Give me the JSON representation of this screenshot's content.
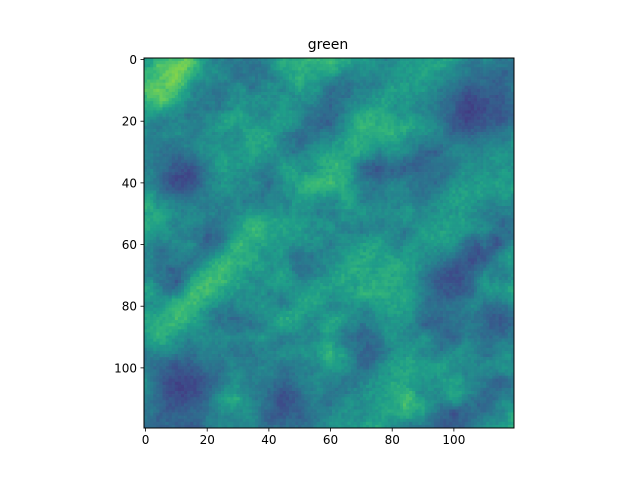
{
  "chart_data": {
    "type": "heatmap",
    "title": "green",
    "colormap": "viridis",
    "colormap_stops": [
      "#440154",
      "#482878",
      "#3e4989",
      "#31688e",
      "#26828e",
      "#1f9e89",
      "#35b779",
      "#6ece58",
      "#b5de2b",
      "#fde725"
    ],
    "grid": false,
    "legend": "none",
    "image_size": [
      120,
      120
    ],
    "xlim": [
      -0.5,
      119.5
    ],
    "ylim": [
      119.5,
      -0.5
    ],
    "x_ticks": [
      0,
      20,
      40,
      60,
      80,
      100
    ],
    "y_ticks": [
      0,
      20,
      40,
      60,
      80,
      100
    ],
    "x_tick_labels": [
      "0",
      "20",
      "40",
      "60",
      "80",
      "100"
    ],
    "y_tick_labels": [
      "0",
      "20",
      "40",
      "60",
      "80",
      "100"
    ],
    "texture": "diagonal forest canopy, bright ridges running from lower-left to upper-right",
    "bright_bands": [
      {
        "row_start": 1,
        "col_start": 13,
        "row_end": 11,
        "col_end": 7,
        "value": 0.95
      },
      {
        "row_start": 55,
        "col_start": 35,
        "row_end": 90,
        "col_end": 5,
        "value": 0.75
      },
      {
        "row_start": 60,
        "col_start": 75,
        "row_end": 85,
        "col_end": 45,
        "value": 0.7
      },
      {
        "row_start": 5,
        "col_start": 85,
        "row_end": 35,
        "col_end": 60,
        "value": 0.65
      },
      {
        "row_start": 45,
        "col_start": 105,
        "row_end": 80,
        "col_end": 80,
        "value": 0.6
      },
      {
        "row_start": 95,
        "col_start": 85,
        "row_end": 118,
        "col_end": 60,
        "value": 0.55
      },
      {
        "row_start": 20,
        "col_start": 45,
        "row_end": 40,
        "col_end": 25,
        "value": 0.6
      },
      {
        "row_start": 30,
        "col_start": 110,
        "row_end": 55,
        "col_end": 95,
        "value": 0.55
      }
    ],
    "dark_regions": [
      {
        "row": 38,
        "col": 12,
        "radius": 10,
        "value": 0.1
      },
      {
        "row": 15,
        "col": 105,
        "radius": 12,
        "value": 0.12
      },
      {
        "row": 105,
        "col": 12,
        "radius": 12,
        "value": 0.1
      },
      {
        "row": 110,
        "col": 45,
        "radius": 10,
        "value": 0.12
      },
      {
        "row": 85,
        "col": 115,
        "radius": 8,
        "value": 0.15
      },
      {
        "row": 70,
        "col": 100,
        "radius": 9,
        "value": 0.15
      }
    ]
  }
}
